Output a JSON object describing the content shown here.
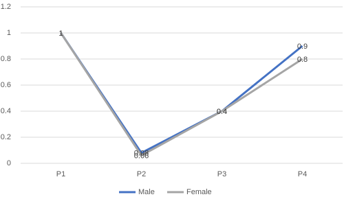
{
  "chart_data": {
    "type": "line",
    "categories": [
      "P1",
      "P2",
      "P3",
      "P4"
    ],
    "series": [
      {
        "name": "Male",
        "color": "#4472c4",
        "values": [
          1,
          0.08,
          0.4,
          0.9
        ]
      },
      {
        "name": "Female",
        "color": "#a5a5a5",
        "values": [
          1,
          0.06,
          0.4,
          0.8
        ]
      }
    ],
    "ylim": [
      0,
      1.2
    ],
    "yticks": [
      0,
      0.2,
      0.4,
      0.6,
      0.8,
      1,
      1.2
    ],
    "grid": true,
    "legend": "bottom"
  }
}
